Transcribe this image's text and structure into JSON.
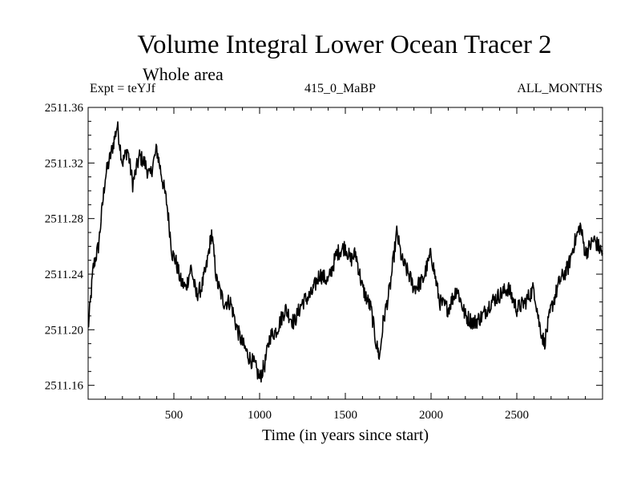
{
  "header": {
    "title": "Volume Integral Lower Ocean Tracer 2",
    "subtitle": "Whole area",
    "experiment": "Expt = teYJf",
    "period": "415_0_MaBP",
    "months": "ALL_MONTHS"
  },
  "chart_data": {
    "type": "line",
    "title": "Volume Integral Lower Ocean Tracer 2",
    "xlabel": "Time (in years since start)",
    "ylabel": "",
    "xlim": [
      0,
      3000
    ],
    "ylim": [
      2511.15,
      2511.36
    ],
    "xticks": [
      500,
      1000,
      1500,
      2000,
      2500
    ],
    "xtick_labels": [
      "500",
      "1000",
      "1500",
      "2000",
      "2500"
    ],
    "yticks": [
      2511.16,
      2511.2,
      2511.24,
      2511.28,
      2511.32,
      2511.36
    ],
    "ytick_labels": [
      "2511.16",
      "2511.20",
      "2511.24",
      "2511.28",
      "2511.32",
      "2511.36"
    ],
    "grid": false,
    "series": [
      {
        "name": "Volume Integral Lower Ocean Tracer 2",
        "color": "#000000",
        "x": [
          0,
          30,
          60,
          100,
          140,
          170,
          200,
          230,
          260,
          300,
          330,
          360,
          400,
          430,
          460,
          490,
          510,
          540,
          570,
          600,
          630,
          660,
          690,
          720,
          750,
          790,
          830,
          870,
          900,
          940,
          970,
          1000,
          1030,
          1060,
          1100,
          1150,
          1200,
          1250,
          1300,
          1350,
          1400,
          1450,
          1500,
          1530,
          1560,
          1600,
          1650,
          1680,
          1700,
          1720,
          1760,
          1800,
          1830,
          1870,
          1900,
          1950,
          2000,
          2050,
          2100,
          2150,
          2200,
          2250,
          2300,
          2350,
          2400,
          2450,
          2500,
          2550,
          2600,
          2630,
          2660,
          2700,
          2750,
          2800,
          2830,
          2870,
          2900,
          2950,
          3000
        ],
        "values": [
          2511.2,
          2511.245,
          2511.26,
          2511.31,
          2511.33,
          2511.347,
          2511.32,
          2511.33,
          2511.305,
          2511.325,
          2511.32,
          2511.31,
          2511.33,
          2511.31,
          2511.29,
          2511.255,
          2511.25,
          2511.235,
          2511.23,
          2511.245,
          2511.225,
          2511.23,
          2511.245,
          2511.27,
          2511.235,
          2511.22,
          2511.22,
          2511.2,
          2511.19,
          2511.18,
          2511.175,
          2511.165,
          2511.175,
          2511.195,
          2511.2,
          2511.215,
          2511.205,
          2511.22,
          2511.225,
          2511.24,
          2511.235,
          2511.255,
          2511.26,
          2511.25,
          2511.255,
          2511.23,
          2511.215,
          2511.19,
          2511.18,
          2511.205,
          2511.23,
          2511.27,
          2511.25,
          2511.24,
          2511.23,
          2511.235,
          2511.255,
          2511.22,
          2511.215,
          2511.23,
          2511.21,
          2511.205,
          2511.21,
          2511.22,
          2511.225,
          2511.23,
          2511.215,
          2511.22,
          2511.23,
          2511.205,
          2511.19,
          2511.215,
          2511.235,
          2511.245,
          2511.26,
          2511.275,
          2511.255,
          2511.265,
          2511.255
        ]
      }
    ]
  }
}
